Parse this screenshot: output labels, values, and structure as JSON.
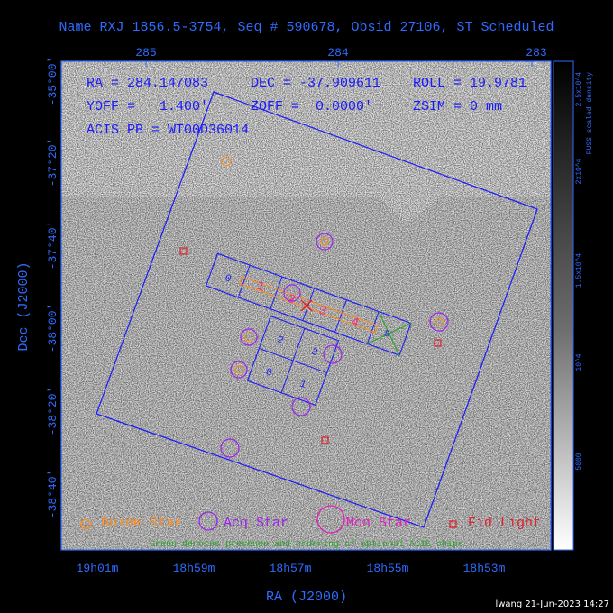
{
  "title": "Name RXJ 1856.5-3754, Seq # 590678, Obsid 27106, ST Scheduled",
  "top_axis": {
    "ticks": [
      "285",
      "284",
      "283"
    ]
  },
  "left_axis": {
    "label": "Dec (J2000)",
    "ticks": [
      "-35°00'",
      "-37°20'",
      "-37°40'",
      "-38°00'",
      "-38°20'",
      "-38°40'"
    ]
  },
  "bottom_axis": {
    "label": "RA (J2000)",
    "ticks": [
      "19h01m",
      "18h59m",
      "18h57m",
      "18h55m",
      "18h53m"
    ]
  },
  "colorbar": {
    "label": "PUSS scaled density",
    "ticks": [
      "2.5x10^4",
      "2x10^4",
      "1.5x10^4",
      "10^4",
      "5000"
    ]
  },
  "info": {
    "line1_ra": "RA = 284.147083",
    "line1_dec": "DEC = -37.909611",
    "line1_roll": "ROLL = 19.9781",
    "line2_yoff": "YOFF =   1.400'",
    "line2_zoff": "ZOFF =  0.0000'",
    "line2_zsim": "ZSIM = 0 mm",
    "line3": "ACIS PB = WT00D36014"
  },
  "chips": {
    "s_array": [
      "0",
      "1",
      "2",
      "3",
      "4",
      "5"
    ],
    "i_array": [
      "2",
      "3",
      "0",
      "1"
    ]
  },
  "legend": {
    "guide": "Guide Star",
    "acq": "Acq Star",
    "mon": "Mon Star",
    "fid": "Fid Light",
    "note": "Green denotes presence and ordering of optional ACIS chips"
  },
  "footer": "lwang 21-Jun-2023 14:27",
  "colors": {
    "axes": "#2f6bff",
    "guide": "#ff8c1a",
    "acq": "#a020f0",
    "fid": "#e0202a",
    "green": "#2aa52a",
    "pink": "#ff2a7a"
  }
}
